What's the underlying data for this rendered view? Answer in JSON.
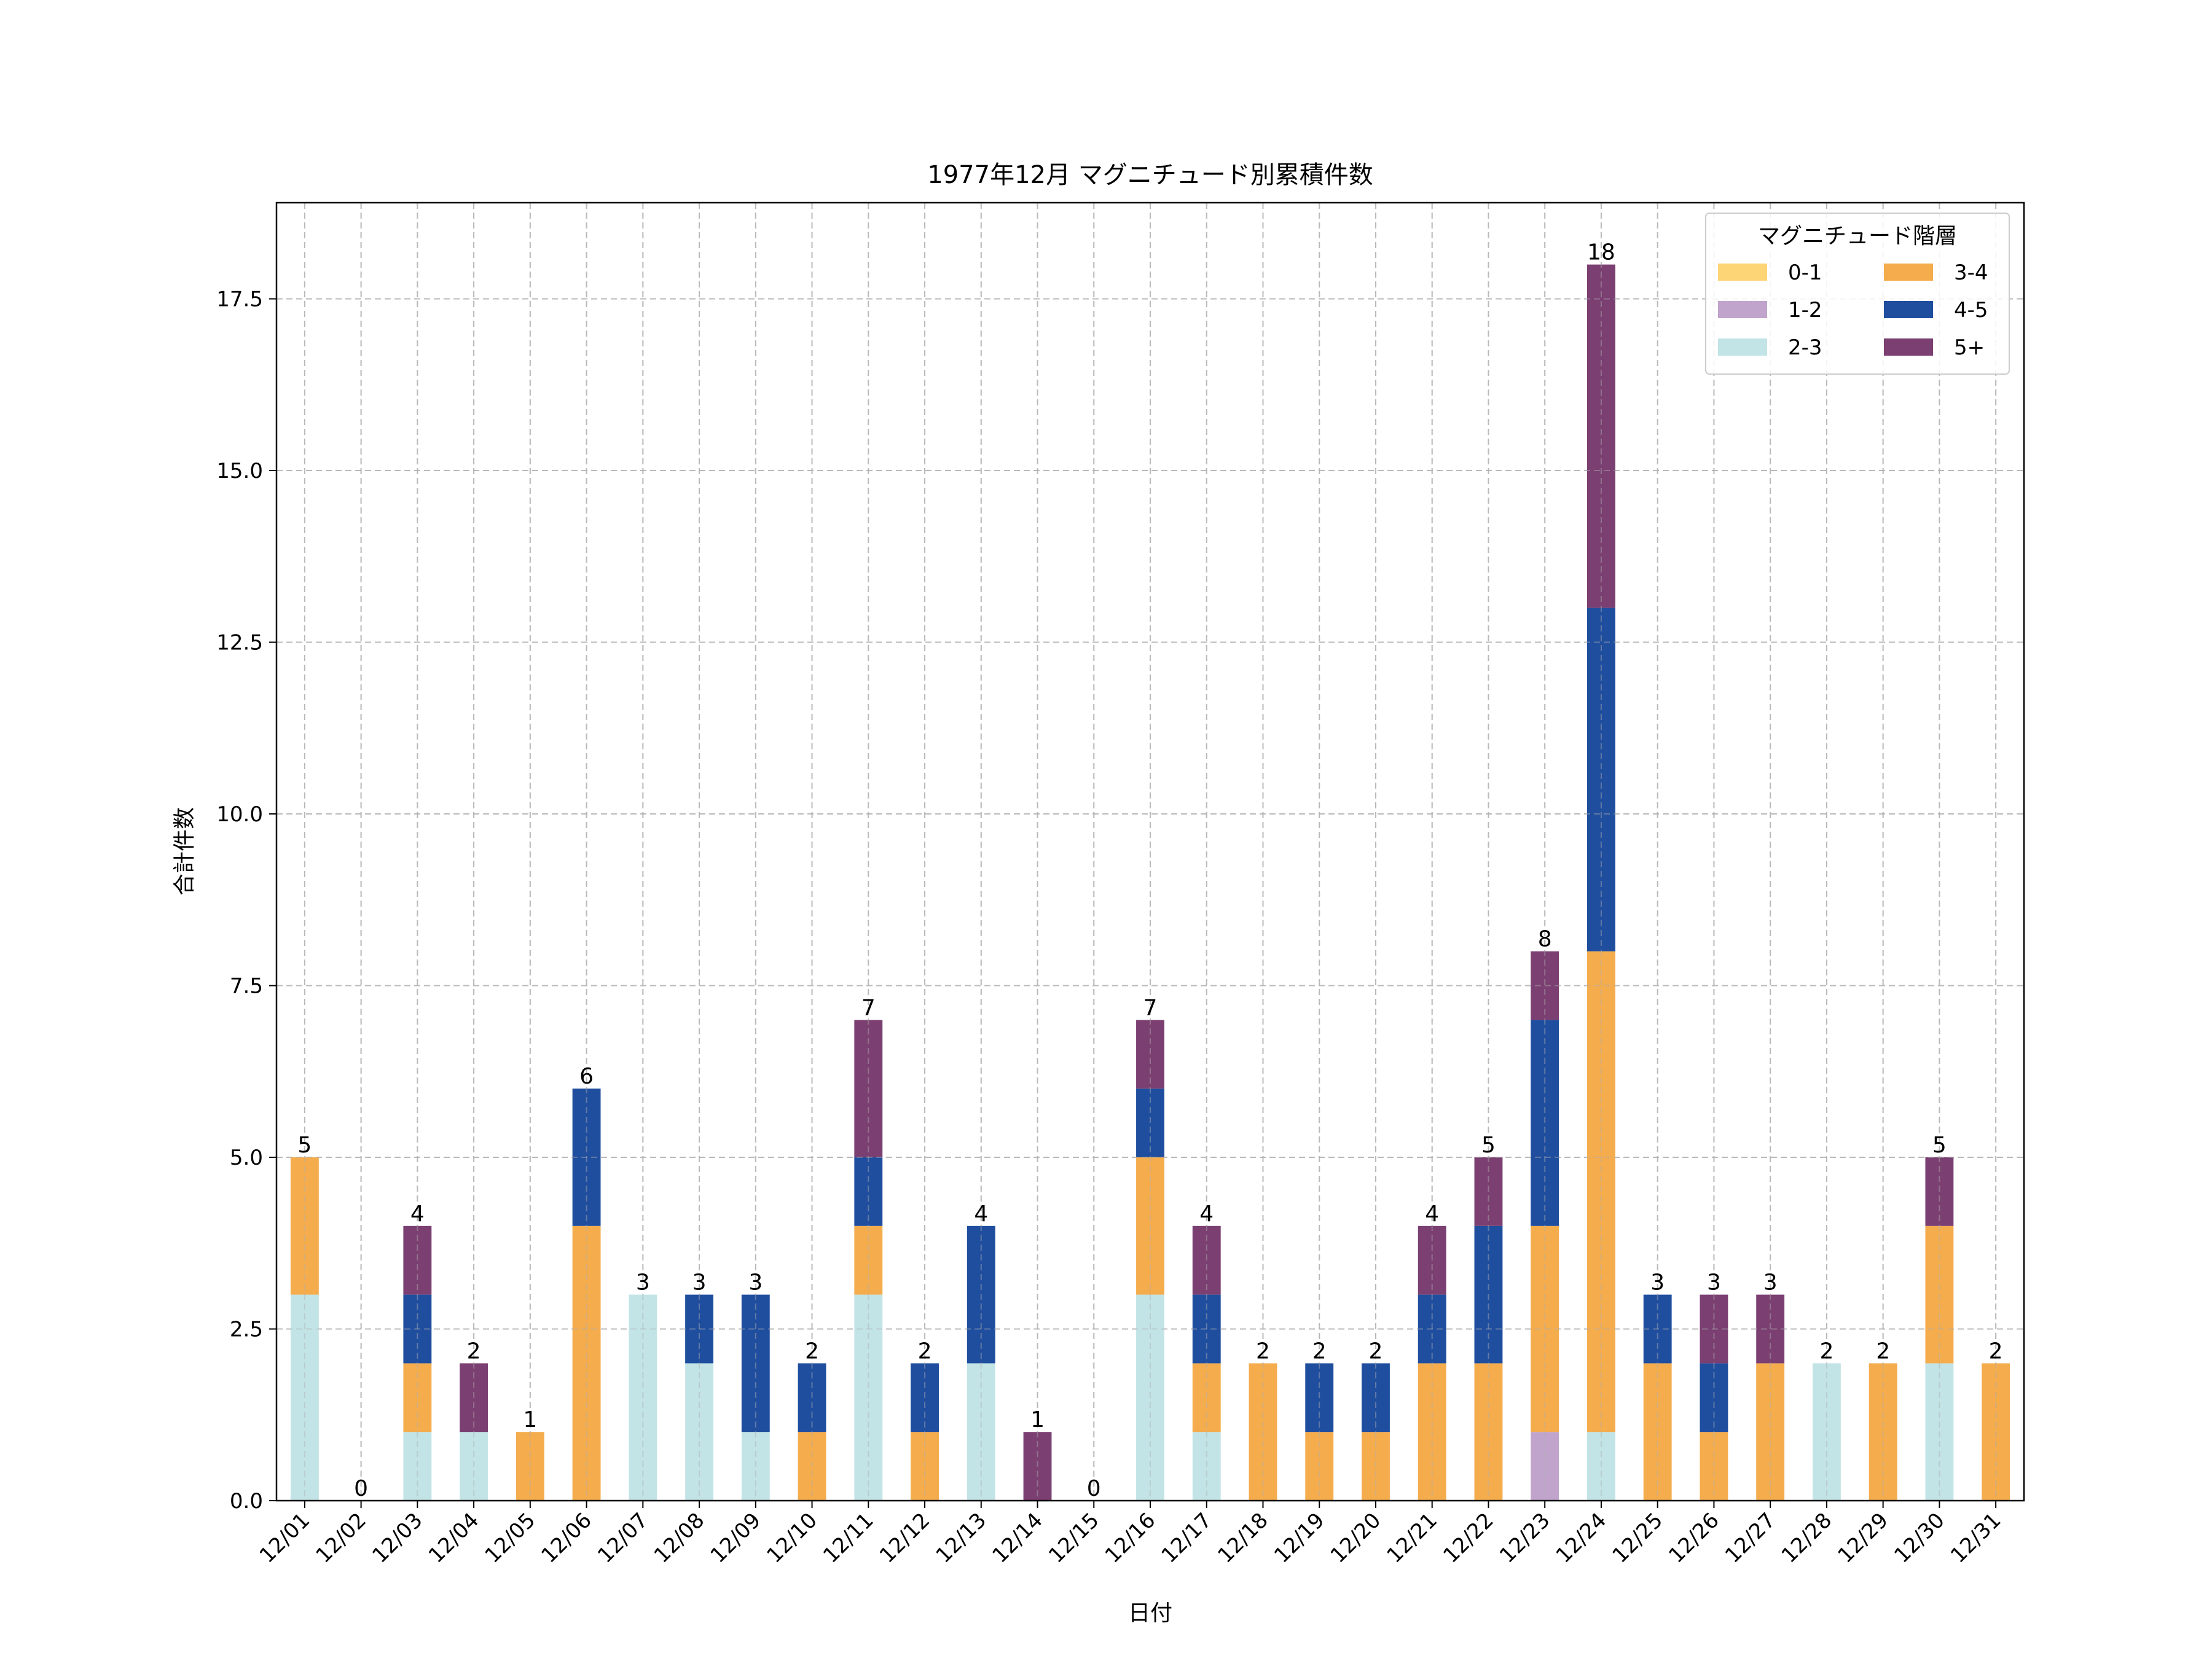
{
  "chart_data": {
    "type": "bar",
    "stacked": true,
    "title": "1977年12月 マグニチュード別累積件数",
    "xlabel": "日付",
    "ylabel": "合計件数",
    "ylim": [
      0,
      18.9
    ],
    "yticks": [
      "0.0",
      "2.5",
      "5.0",
      "7.5",
      "10.0",
      "12.5",
      "15.0",
      "17.5"
    ],
    "grid": true,
    "legend_title": "マグニチュード階層",
    "legend_position": "top-right",
    "categories": [
      "12/01",
      "12/02",
      "12/03",
      "12/04",
      "12/05",
      "12/06",
      "12/07",
      "12/08",
      "12/09",
      "12/10",
      "12/11",
      "12/12",
      "12/13",
      "12/14",
      "12/15",
      "12/16",
      "12/17",
      "12/18",
      "12/19",
      "12/20",
      "12/21",
      "12/22",
      "12/23",
      "12/24",
      "12/25",
      "12/26",
      "12/27",
      "12/28",
      "12/29",
      "12/30",
      "12/31"
    ],
    "series": [
      {
        "name": "0-1",
        "color": "#fdd577",
        "values": [
          0,
          0,
          0,
          0,
          0,
          0,
          0,
          0,
          0,
          0,
          0,
          0,
          0,
          0,
          0,
          0,
          0,
          0,
          0,
          0,
          0,
          0,
          0,
          0,
          0,
          0,
          0,
          0,
          0,
          0,
          0
        ]
      },
      {
        "name": "1-2",
        "color": "#c0a4cc",
        "values": [
          0,
          0,
          0,
          0,
          0,
          0,
          0,
          0,
          0,
          0,
          0,
          0,
          0,
          0,
          0,
          0,
          0,
          0,
          0,
          0,
          0,
          0,
          1,
          0,
          0,
          0,
          0,
          0,
          0,
          0,
          0
        ]
      },
      {
        "name": "2-3",
        "color": "#c2e4e6",
        "values": [
          3,
          0,
          1,
          1,
          0,
          0,
          3,
          2,
          1,
          0,
          3,
          0,
          2,
          0,
          0,
          3,
          1,
          0,
          0,
          0,
          0,
          0,
          0,
          1,
          0,
          0,
          0,
          2,
          0,
          2,
          0
        ]
      },
      {
        "name": "3-4",
        "color": "#f4ac4d",
        "values": [
          2,
          0,
          1,
          0,
          1,
          4,
          0,
          0,
          0,
          1,
          1,
          1,
          0,
          0,
          0,
          2,
          1,
          2,
          1,
          1,
          2,
          2,
          3,
          7,
          2,
          1,
          2,
          0,
          2,
          2,
          2
        ]
      },
      {
        "name": "4-5",
        "color": "#1f4e9e",
        "values": [
          0,
          0,
          1,
          0,
          0,
          2,
          0,
          1,
          2,
          1,
          1,
          1,
          2,
          0,
          0,
          1,
          1,
          0,
          1,
          1,
          1,
          2,
          3,
          5,
          1,
          1,
          0,
          0,
          0,
          0,
          0
        ]
      },
      {
        "name": "5+",
        "color": "#7b3f72",
        "values": [
          0,
          0,
          1,
          1,
          0,
          0,
          0,
          0,
          0,
          0,
          2,
          0,
          0,
          1,
          0,
          1,
          1,
          0,
          0,
          0,
          1,
          1,
          1,
          5,
          0,
          1,
          1,
          0,
          0,
          1,
          0
        ]
      }
    ],
    "totals": [
      "5",
      "0",
      "4",
      "2",
      "1",
      "6",
      "3",
      "3",
      "3",
      "2",
      "7",
      "2",
      "4",
      "1",
      "0",
      "7",
      "4",
      "2",
      "2",
      "2",
      "4",
      "5",
      "8",
      "18",
      "3",
      "3",
      "3",
      "2",
      "2",
      "5",
      "2"
    ]
  }
}
